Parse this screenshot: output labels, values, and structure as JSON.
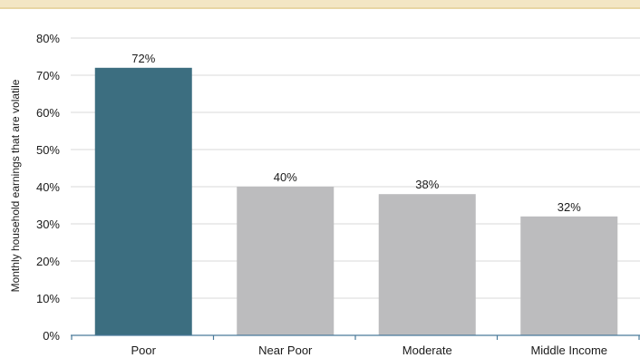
{
  "chart_data": {
    "type": "bar",
    "categories": [
      "Poor",
      "Near Poor",
      "Moderate",
      "Middle Income"
    ],
    "values": [
      72,
      40,
      38,
      32
    ],
    "value_labels": [
      "72%",
      "40%",
      "38%",
      "32%"
    ],
    "ylabel": "Monthly household earnings that are volatile",
    "xlabel": "",
    "ylim": [
      0,
      80
    ],
    "yticks": [
      0,
      10,
      20,
      30,
      40,
      50,
      60,
      70,
      80
    ],
    "ytick_labels": [
      "0%",
      "10%",
      "20%",
      "30%",
      "40%",
      "50%",
      "60%",
      "70%",
      "80%"
    ],
    "grid": true,
    "legend": "none",
    "colors": {
      "highlight": "#3c6e80",
      "default": "#bcbcbe",
      "grid": "#d9d9d9",
      "axis": "#4a7a9a"
    },
    "highlight_index": 0
  }
}
